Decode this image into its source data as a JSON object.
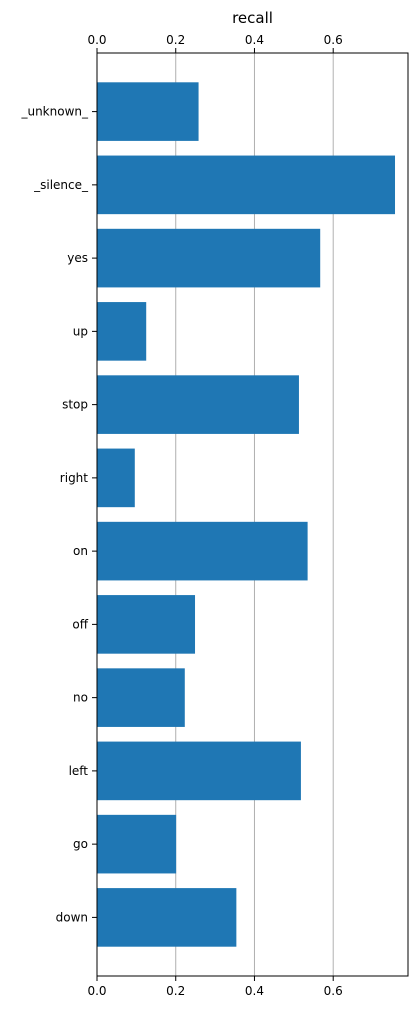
{
  "chart_data": {
    "type": "bar",
    "orientation": "horizontal",
    "title": "",
    "xlabel": "recall",
    "ylabel": "",
    "xlabel_position": "top",
    "xlim": [
      0,
      0.79
    ],
    "xticks": [
      0.0,
      0.2,
      0.4,
      0.6
    ],
    "xtick_labels": [
      "0.0",
      "0.2",
      "0.4",
      "0.6"
    ],
    "xticks_top_and_bottom": true,
    "grid": "vertical",
    "bar_color": "#1f77b4",
    "categories": [
      "_unknown_",
      "_silence_",
      "yes",
      "up",
      "stop",
      "right",
      "on",
      "off",
      "no",
      "left",
      "go",
      "down"
    ],
    "values": [
      0.258,
      0.757,
      0.567,
      0.125,
      0.513,
      0.096,
      0.535,
      0.249,
      0.223,
      0.518,
      0.201,
      0.354
    ]
  }
}
